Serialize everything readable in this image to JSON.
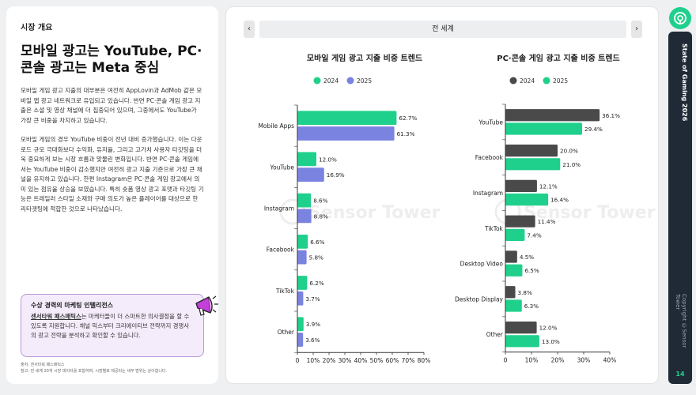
{
  "left": {
    "section_label": "시장 개요",
    "headline": "모바일 광고는 YouTube, PC·콘솔 광고는 Meta 중심",
    "paragraph1": "모바일 게임 광고 지출의 대부분은 여전히 AppLovin과 AdMob 같은 모바일 앱 광고 네트워크로 유입되고 있습니다. 반면 PC·콘솔 게임 광고 지출은 소셜 및 영상 채널에 더 집중되어 있으며, 그중에서도 YouTube가 가장 큰 비중을 차지하고 있습니다.",
    "paragraph2": "모바일 게임의 경우 YouTube 비중이 전년 대비 증가했습니다. 이는 다운로드 규모 극대화보다 수익화, 유지율, 그리고 고가치 사용자 타깃팅을 더욱 중요하게 보는 시장 흐름과 맞물린 변화입니다. 반면 PC·콘솔 게임에서는 YouTube 비중이 감소했지만 여전히 광고 지출 기준으로 가장 큰 채널을 유지하고 있습니다. 한편 Instagram은 PC·콘솔 게임 광고에서 의미 있는 점유율 상승을 보였습니다. 특히 숏폼 영상 광고 포맷과 타깃팅 기능은 트레일러 스타일 소재와 구매 의도가 높은 플레이어를 대상으로 한 리타겟팅에 적합한 것으로 나타났습니다.",
    "callout": {
      "title": "수상 경력의 마케팅 인텔리전스",
      "link_text": "센서타워 패스매틱스",
      "body_rest": "는 마케터들이 더 스마트한 의사결정을 할 수 있도록 지원합니다. 채널 믹스부터 크리에이티브 전략까지 경쟁사의 광고 전략을 분석하고 확인할 수 있습니다.",
      "icon": "megaphone-icon"
    },
    "source_line1": "출처: 센서타워 패스매틱스",
    "source_line2": "참고: 전 세계 20개 시장 데이터를 포함하며, 시장별로 제공되는 세부 범위는 상이합니다."
  },
  "region": {
    "label": "전 세계",
    "prev_icon": "chevron-left-icon",
    "next_icon": "chevron-right-icon"
  },
  "watermark": "Sensor Tower",
  "colors": {
    "mobile_2024": "#1fd08c",
    "mobile_2025": "#7b83e0",
    "pc_2024": "#4a4a4a",
    "pc_2025": "#1fd08c",
    "accent": "#1fd08c",
    "callout_border": "#b79ad6"
  },
  "rail": {
    "title": "State of Gaming 2026",
    "copyright": "Copyright ©Sensor Tower",
    "page": "14"
  },
  "chart_data": [
    {
      "type": "bar",
      "orientation": "horizontal",
      "title": "모바일 게임 광고 지출 비중 트렌드",
      "categories": [
        "Mobile Apps",
        "YouTube",
        "Instagram",
        "Facebook",
        "TikTok",
        "Other"
      ],
      "series": [
        {
          "name": "2024",
          "values": [
            62.7,
            12.0,
            8.6,
            6.6,
            6.2,
            3.9
          ],
          "labels": [
            "62.7%",
            "12.0%",
            "8.6%",
            "6.6%",
            "6.2%",
            "3.9%"
          ]
        },
        {
          "name": "2025",
          "values": [
            61.3,
            16.9,
            8.8,
            5.8,
            3.7,
            3.6
          ],
          "labels": [
            "61.3%",
            "16.9%",
            "8.8%",
            "5.8%",
            "3.7%",
            "3.6%"
          ]
        }
      ],
      "xlim": [
        0,
        80
      ],
      "ticks": [
        0,
        10,
        20,
        30,
        40,
        50,
        60,
        70,
        80
      ],
      "tick_labels": [
        "0",
        "10%",
        "20%",
        "30%",
        "40%",
        "50%",
        "60%",
        "70%",
        "80%"
      ],
      "legend": "top-center",
      "grid": false
    },
    {
      "type": "bar",
      "orientation": "horizontal",
      "title": "PC·콘솔 게임 광고 지출 비중 트렌드",
      "categories": [
        "YouTube",
        "Facebook",
        "Instagram",
        "TikTok",
        "Desktop Video",
        "Desktop Display",
        "Other"
      ],
      "series": [
        {
          "name": "2024",
          "values": [
            36.1,
            20.0,
            12.1,
            11.4,
            4.5,
            3.8,
            12.0
          ],
          "labels": [
            "36.1%",
            "20.0%",
            "12.1%",
            "11.4%",
            "4.5%",
            "3.8%",
            "12.0%"
          ]
        },
        {
          "name": "2025",
          "values": [
            29.4,
            21.0,
            16.4,
            7.4,
            6.5,
            6.3,
            13.0
          ],
          "labels": [
            "29.4%",
            "21.0%",
            "16.4%",
            "7.4%",
            "6.5%",
            "6.3%",
            "13.0%"
          ]
        }
      ],
      "xlim": [
        0,
        40
      ],
      "ticks": [
        0,
        10,
        20,
        30,
        40
      ],
      "tick_labels": [
        "0",
        "10%",
        "20%",
        "30%",
        "40%"
      ],
      "legend": "top-center",
      "grid": false
    }
  ]
}
